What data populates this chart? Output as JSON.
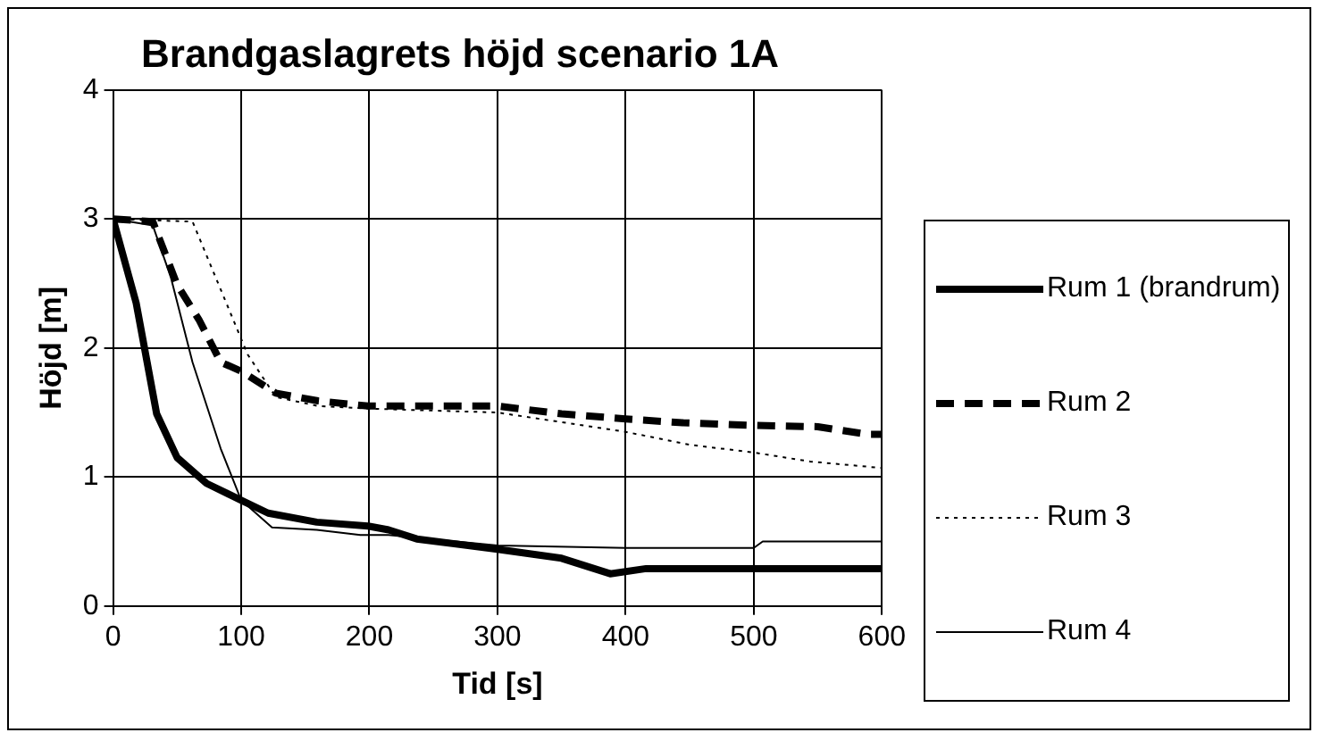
{
  "chart_data": {
    "type": "line",
    "title": "Brandgaslagrets höjd scenario 1A",
    "xlabel": "Tid [s]",
    "ylabel": "Höjd [m]",
    "xlim": [
      0,
      600
    ],
    "xticks": [
      0,
      100,
      200,
      300,
      400,
      500,
      600
    ],
    "ylim": [
      0,
      4
    ],
    "yticks": [
      0,
      1,
      2,
      3,
      4
    ],
    "grid": true,
    "legend": "right",
    "marker": "none",
    "series": [
      {
        "name": "Rum 1 (brandrum)",
        "color": "#000000",
        "line_style": "solid",
        "x": [
          0,
          18,
          34,
          50,
          73,
          100,
          121,
          159,
          199,
          215,
          237,
          300,
          350,
          388,
          416,
          600
        ],
        "values": [
          3,
          2.35,
          1.49,
          1.15,
          0.95,
          0.82,
          0.72,
          0.65,
          0.62,
          0.59,
          0.52,
          0.44,
          0.37,
          0.25,
          0.29,
          0.29
        ]
      },
      {
        "name": "Rum 2",
        "color": "#000000",
        "line_style": "dashed",
        "x": [
          0,
          31,
          50,
          67,
          84,
          100,
          127,
          160,
          199,
          300,
          350,
          400,
          445,
          500,
          550,
          589,
          600
        ],
        "values": [
          3,
          2.98,
          2.49,
          2.22,
          1.89,
          1.82,
          1.65,
          1.59,
          1.55,
          1.55,
          1.49,
          1.45,
          1.42,
          1.4,
          1.39,
          1.33,
          1.33
        ]
      },
      {
        "name": "Rum 3",
        "color": "#000000",
        "line_style": "dotted",
        "x": [
          0,
          62,
          105,
          127,
          160,
          200,
          300,
          400,
          450,
          500,
          544,
          600
        ],
        "values": [
          3,
          2.98,
          1.95,
          1.62,
          1.55,
          1.53,
          1.5,
          1.35,
          1.25,
          1.19,
          1.12,
          1.07
        ]
      },
      {
        "name": "Rum 4",
        "color": "#000000",
        "line_style": "solid",
        "x": [
          0,
          31,
          45,
          62,
          84,
          100,
          124,
          159,
          193,
          215,
          300,
          400,
          500,
          507,
          600
        ],
        "values": [
          3,
          2.95,
          2.55,
          1.89,
          1.22,
          0.82,
          0.61,
          0.59,
          0.55,
          0.55,
          0.47,
          0.45,
          0.45,
          0.5,
          0.5
        ]
      }
    ]
  }
}
